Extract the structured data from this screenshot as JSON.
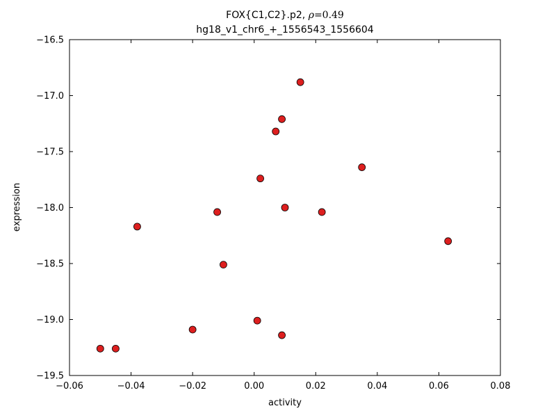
{
  "chart_data": {
    "type": "scatter",
    "title": {
      "prefix": "FOX{C1,C2}.p2, ",
      "math_rho": "ρ",
      "math_rest": "=0.49"
    },
    "subtitle": "hg18_v1_chr6_+_1556543_1556604",
    "xlabel": "activity",
    "ylabel": "expression",
    "xlim": [
      -0.06,
      0.08
    ],
    "ylim": [
      -19.5,
      -16.5
    ],
    "xticks": [
      -0.06,
      -0.04,
      -0.02,
      0.0,
      0.02,
      0.04,
      0.06,
      0.08
    ],
    "xtick_labels": [
      "−0.06",
      "−0.04",
      "−0.02",
      "0.00",
      "0.02",
      "0.04",
      "0.06",
      "0.08"
    ],
    "yticks": [
      -19.5,
      -19.0,
      -18.5,
      -18.0,
      -17.5,
      -17.0,
      -16.5
    ],
    "ytick_labels": [
      "−19.5",
      "−19.0",
      "−18.5",
      "−18.0",
      "−17.5",
      "−17.0",
      "−16.5"
    ],
    "grid": false,
    "legend": "none",
    "marker_shape": "circle",
    "marker_fill": "#dd1f1f",
    "marker_edge": "#000000",
    "points": [
      [
        -0.05,
        -19.26
      ],
      [
        -0.045,
        -19.26
      ],
      [
        -0.038,
        -18.17
      ],
      [
        -0.02,
        -19.09
      ],
      [
        -0.012,
        -18.04
      ],
      [
        -0.01,
        -18.51
      ],
      [
        0.001,
        -19.01
      ],
      [
        0.002,
        -17.74
      ],
      [
        0.007,
        -17.32
      ],
      [
        0.009,
        -17.21
      ],
      [
        0.009,
        -19.14
      ],
      [
        0.01,
        -18.0
      ],
      [
        0.015,
        -16.88
      ],
      [
        0.022,
        -18.04
      ],
      [
        0.035,
        -17.64
      ],
      [
        0.063,
        -18.3
      ]
    ]
  }
}
